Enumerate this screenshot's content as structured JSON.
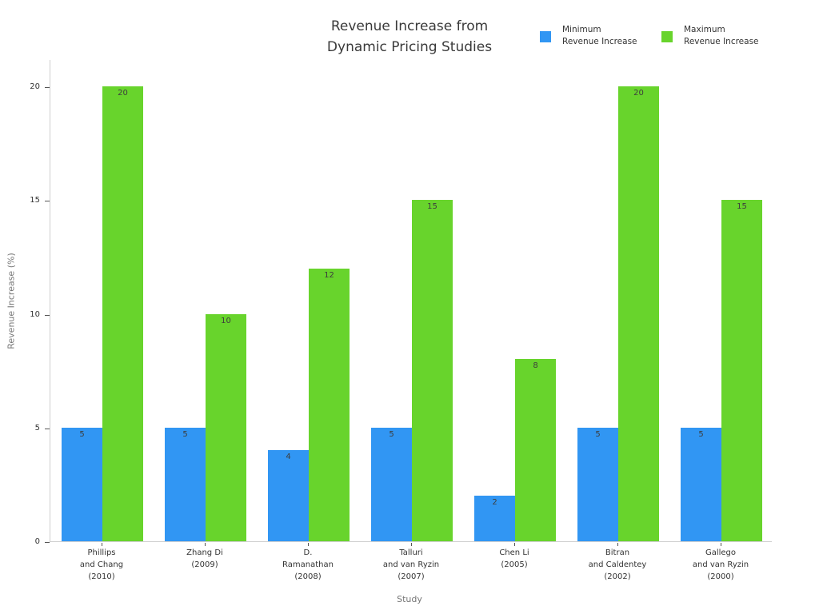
{
  "title": "Revenue Increase from\nDynamic Pricing Studies",
  "legend": [
    {
      "label": "Minimum\nRevenue Increase",
      "color": "#3196f3"
    },
    {
      "label": "Maximum\nRevenue Increase",
      "color": "#68d42c"
    }
  ],
  "chart_data": {
    "type": "bar",
    "title": "Revenue Increase from Dynamic Pricing Studies",
    "xlabel": "Study",
    "ylabel": "Revenue Increase (%)",
    "categories": [
      "Phillips\nand Chang\n(2010)",
      "Zhang Di\n(2009)",
      "D.\nRamanathan\n(2008)",
      "Talluri\nand van Ryzin\n(2007)",
      "Chen Li\n(2005)",
      "Bitran\nand Caldentey\n(2002)",
      "Gallego\nand van Ryzin\n(2000)"
    ],
    "series": [
      {
        "name": "Minimum Revenue Increase",
        "color": "#3196f3",
        "values": [
          5,
          5,
          4,
          5,
          2,
          5,
          5
        ]
      },
      {
        "name": "Maximum Revenue Increase",
        "color": "#68d42c",
        "values": [
          20,
          10,
          12,
          15,
          8,
          20,
          15
        ]
      }
    ],
    "yticks": [
      0,
      5,
      10,
      15,
      20
    ],
    "ylim": [
      0,
      21.2
    ],
    "grid": false,
    "legend_position": "top-right",
    "bar_value_labels": "inside-top"
  }
}
